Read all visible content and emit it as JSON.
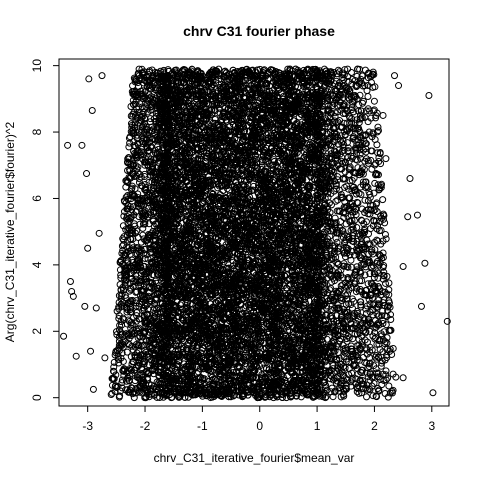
{
  "chart_data": {
    "type": "scatter",
    "title": "chrv C31 fourier phase",
    "xlabel": "chrv_C31_iterative_fourier$mean_var",
    "ylabel": "Arg(chrv_C31_iterative_fourier$fourier)^2",
    "xlim": [
      -3.5,
      3.3
    ],
    "ylim": [
      -0.25,
      10.2
    ],
    "x_ticks": [
      -3,
      -2,
      -1,
      0,
      1,
      2,
      3
    ],
    "y_ticks": [
      0,
      2,
      4,
      6,
      8,
      10
    ],
    "grid": false,
    "legend": "none",
    "marker": "open-circle",
    "color": "#000000",
    "series": [
      {
        "values_note": "",
        "points": [
          [
            -3.42,
            1.85
          ],
          [
            -3.35,
            7.6
          ],
          [
            -3.3,
            3.5
          ],
          [
            -3.28,
            3.2
          ],
          [
            -3.25,
            3.05
          ],
          [
            -3.2,
            1.25
          ],
          [
            -3.1,
            7.6
          ],
          [
            -3.05,
            2.75
          ],
          [
            -3.02,
            6.75
          ],
          [
            -3.0,
            4.5
          ],
          [
            -2.98,
            9.6
          ],
          [
            -2.95,
            1.4
          ],
          [
            -2.92,
            8.65
          ],
          [
            -2.9,
            0.25
          ],
          [
            -2.85,
            2.7
          ],
          [
            -2.8,
            4.95
          ],
          [
            -2.75,
            9.7
          ],
          [
            -2.7,
            1.2
          ],
          [
            3.27,
            2.3
          ],
          [
            3.02,
            0.15
          ],
          [
            2.95,
            9.1
          ],
          [
            2.88,
            4.05
          ],
          [
            2.82,
            2.75
          ],
          [
            2.75,
            5.5
          ],
          [
            2.62,
            6.6
          ],
          [
            2.58,
            5.45
          ],
          [
            2.5,
            3.95
          ],
          [
            2.42,
            9.4
          ],
          [
            2.35,
            9.7
          ],
          [
            2.2,
            7.2
          ],
          [
            2.1,
            5.3
          ],
          [
            2.05,
            4.1
          ],
          [
            2.3,
            1.3
          ],
          [
            2.5,
            0.6
          ],
          [
            2.25,
            3.1
          ],
          [
            2.15,
            8.5
          ]
        ]
      }
    ],
    "density": {
      "dense_x_range": [
        -1.6,
        1.0
      ],
      "edge_spread_top": [
        -2.2,
        2.0
      ],
      "edge_spread_bottom": [
        -2.6,
        2.4
      ]
    }
  }
}
